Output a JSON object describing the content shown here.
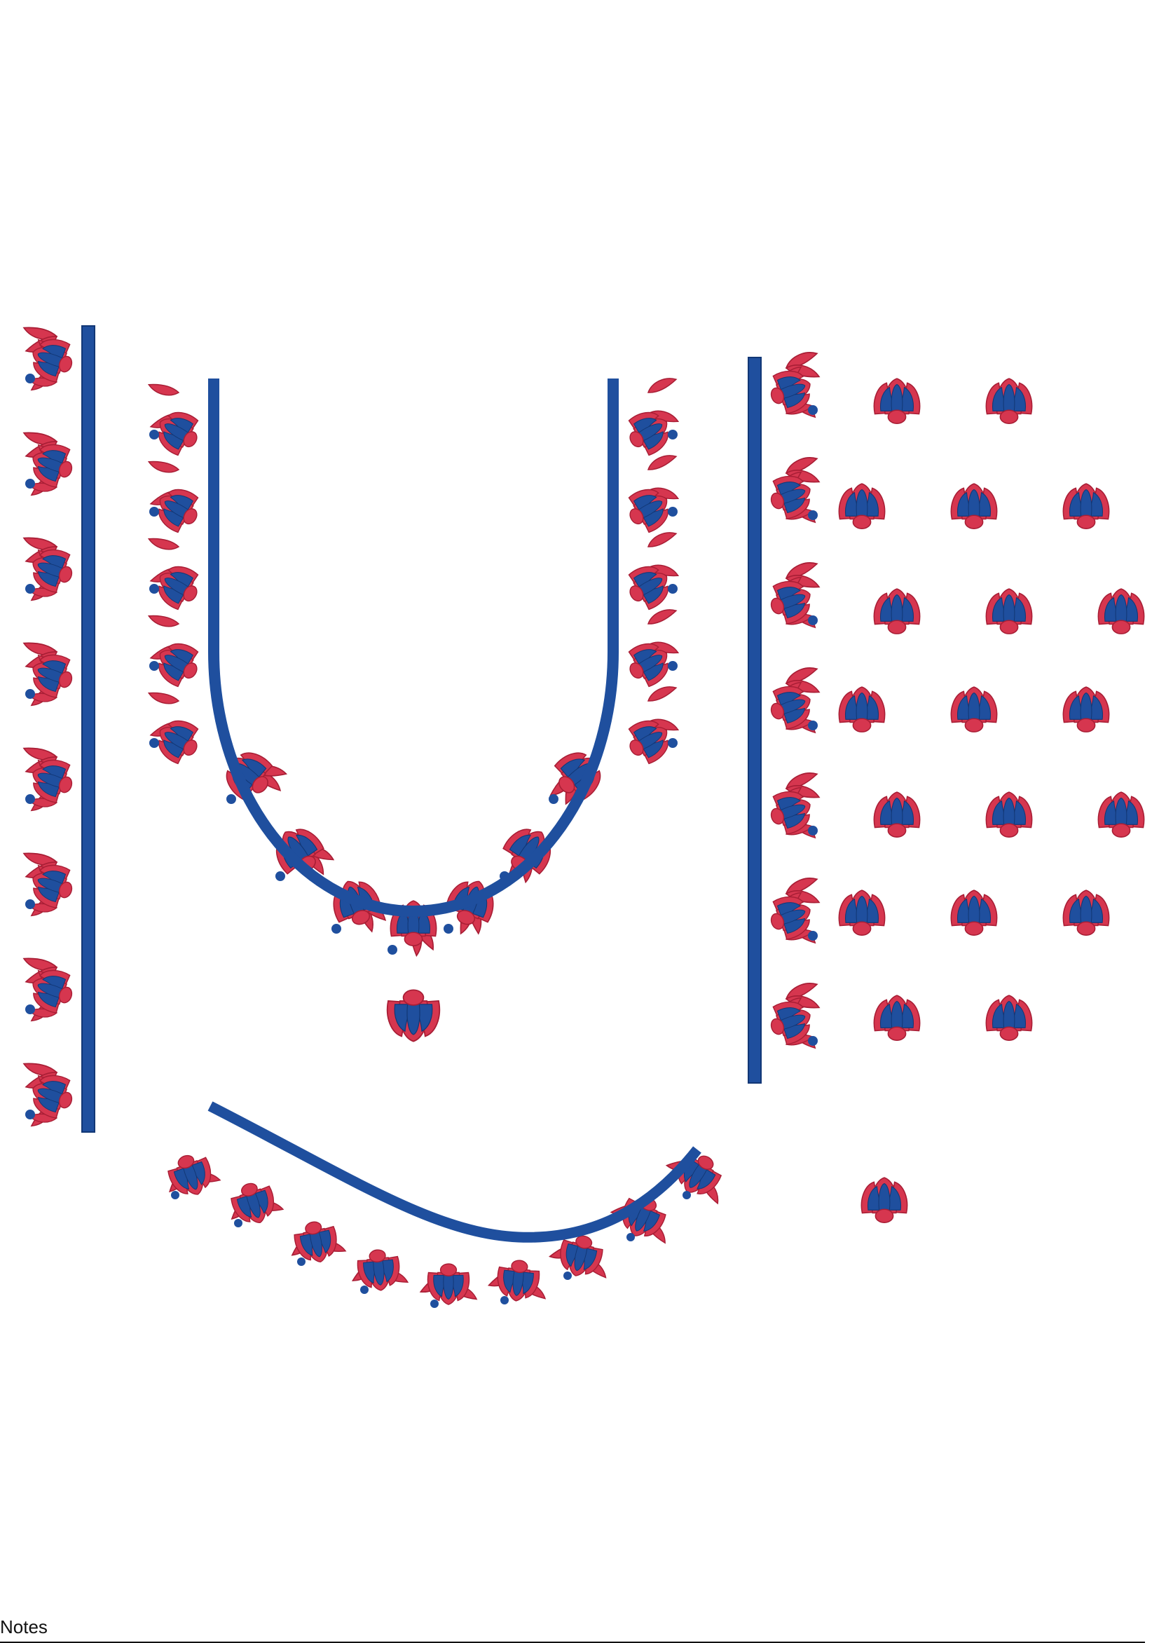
{
  "colors": {
    "thread_red": "#d6364f",
    "thread_red_dark": "#a81e35",
    "thread_blue": "#1f4f9e",
    "thread_blue_dark": "#123775",
    "background": "#ffffff"
  },
  "design": {
    "pieces": [
      {
        "name": "left-sleeve-border"
      },
      {
        "name": "u-neckline"
      },
      {
        "name": "right-placket-border"
      },
      {
        "name": "floral-buti-pattern"
      },
      {
        "name": "back-neck-curve"
      },
      {
        "name": "single-buti"
      }
    ]
  },
  "footer": {
    "notes_label": "Notes"
  }
}
